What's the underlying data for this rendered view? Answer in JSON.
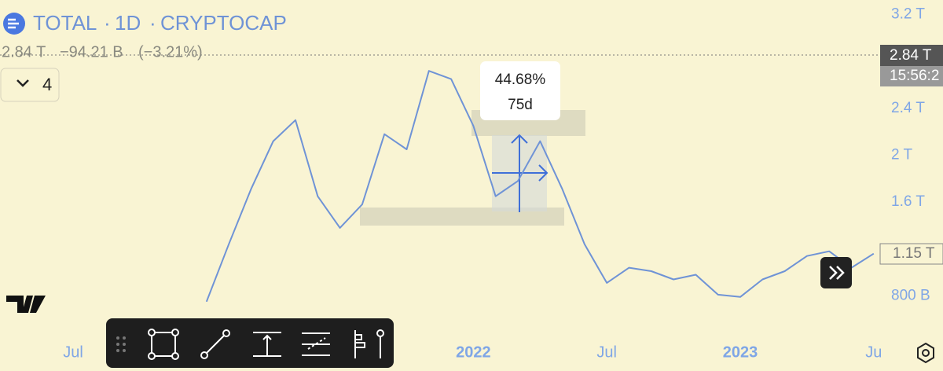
{
  "header": {
    "symbol": "TOTAL",
    "interval": "1D",
    "exchange": "CRYPTOCAP",
    "separator": "·"
  },
  "quote": {
    "last": "2.84 T",
    "change": "−94.21 B",
    "change_percent": "(−3.21%)"
  },
  "indicators_toggle": "4",
  "price_scale": {
    "last_price": "2.84 T",
    "countdown": "15:56:2",
    "visible_last": "1.15 T"
  },
  "measure": {
    "percent": "44.68%",
    "duration": "75d"
  },
  "chart_data": {
    "type": "line",
    "color": "#6f93d6",
    "categories": [
      "Jul",
      null,
      null,
      null,
      null,
      null,
      null,
      null,
      null,
      null,
      null,
      null,
      null,
      null,
      null,
      null,
      null,
      null,
      "2022",
      null,
      null,
      null,
      null,
      null,
      "Jul",
      null,
      null,
      null,
      null,
      null,
      "2023",
      null,
      null,
      null,
      null,
      null,
      "Ju"
    ],
    "values": [
      null,
      null,
      null,
      null,
      null,
      null,
      0.75,
      1.24,
      1.71,
      2.12,
      2.3,
      1.65,
      1.38,
      1.58,
      2.18,
      2.05,
      2.72,
      2.65,
      2.25,
      1.65,
      1.78,
      2.12,
      1.71,
      1.24,
      0.91,
      1.04,
      1.01,
      0.94,
      0.98,
      0.81,
      0.79,
      0.94,
      1.01,
      1.14,
      1.18,
      1.04,
      1.16
    ],
    "ylim": [
      0.44,
      3.325
    ],
    "yticks": [
      {
        "value": 3.2,
        "label": "3.2 T"
      },
      {
        "value": 2.4,
        "label": "2.4 T"
      },
      {
        "value": 2,
        "label": "2 T"
      },
      {
        "value": 1.6,
        "label": "1.6 T"
      },
      {
        "value": 0.8,
        "label": "800 B"
      }
    ],
    "grid": false
  }
}
